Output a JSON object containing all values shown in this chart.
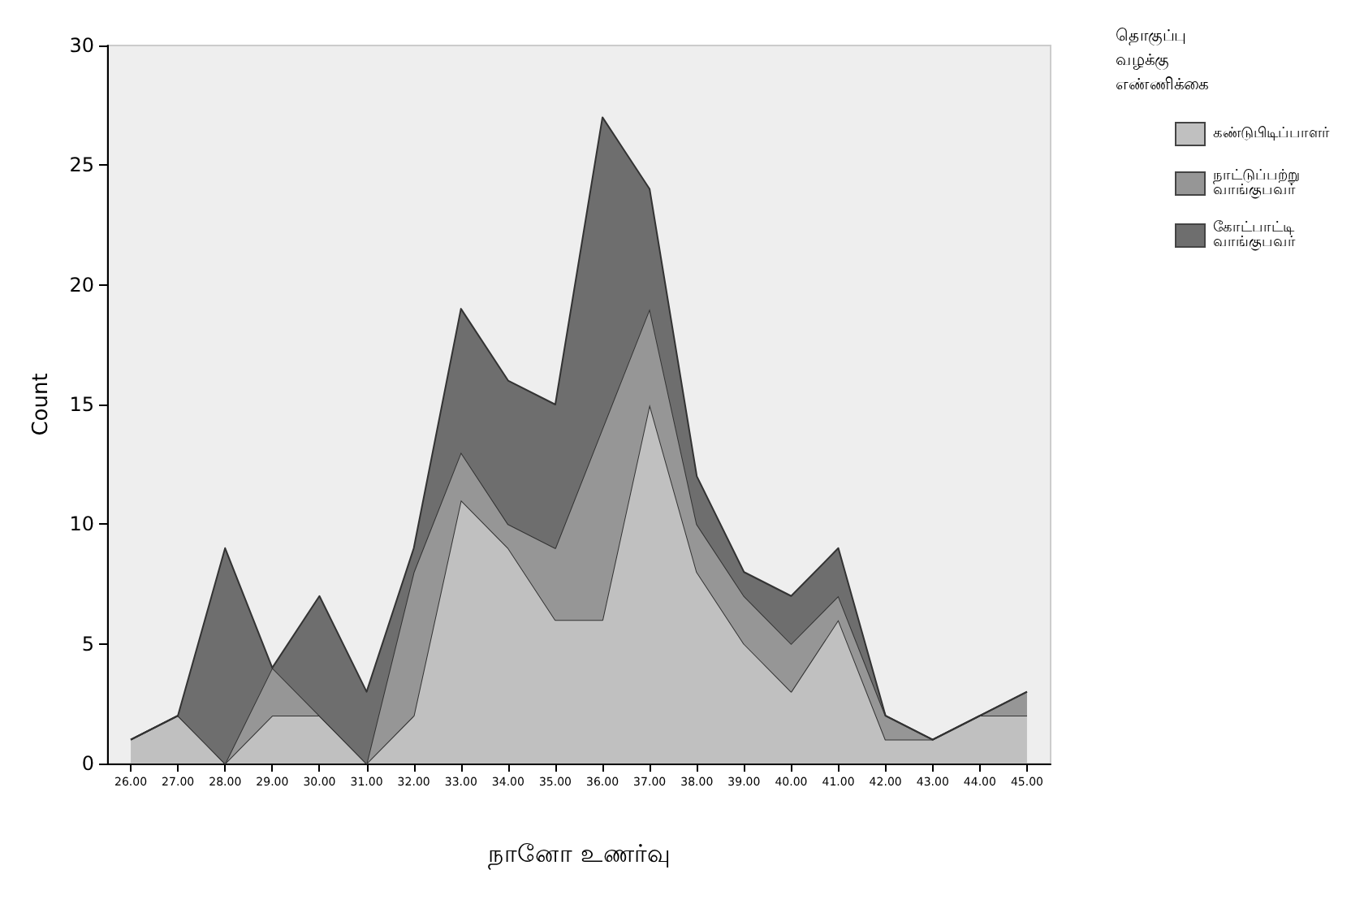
{
  "chart_data": {
    "type": "area",
    "stacked": true,
    "xlabel": "நானோ உணர்வு",
    "ylabel": "Count",
    "legend_title": "தொகுப்பு வழக்கு எண்ணிக்கை",
    "categories": [
      "26.00",
      "27.00",
      "28.00",
      "29.00",
      "30.00",
      "31.00",
      "32.00",
      "33.00",
      "34.00",
      "35.00",
      "36.00",
      "37.00",
      "38.00",
      "39.00",
      "40.00",
      "41.00",
      "42.00",
      "43.00",
      "44.00",
      "45.00"
    ],
    "series": [
      {
        "name": "கண்டுபிடிப்பாளர்",
        "color": "#c0c0c0",
        "values": [
          1,
          2,
          0,
          2,
          2,
          0,
          2,
          11,
          9,
          6,
          6,
          15,
          8,
          5,
          3,
          6,
          1,
          1,
          2,
          2
        ]
      },
      {
        "name": "நாட்டுப்பற்று வாங்குபவர்",
        "color": "#969696",
        "values": [
          0,
          0,
          0,
          2,
          0,
          0,
          6,
          2,
          1,
          3,
          8,
          4,
          2,
          2,
          2,
          1,
          1,
          0,
          0,
          1
        ]
      },
      {
        "name": "கோட்பாட்டி வாங்குபவர்",
        "color": "#6e6e6e",
        "values": [
          0,
          0,
          9,
          0,
          5,
          3,
          1,
          6,
          6,
          6,
          13,
          5,
          2,
          1,
          2,
          2,
          0,
          0,
          0,
          0
        ]
      }
    ],
    "ylim": [
      0,
      30
    ],
    "yticks": [
      0,
      5,
      10,
      15,
      20,
      25,
      30
    ],
    "legend": "top right"
  }
}
